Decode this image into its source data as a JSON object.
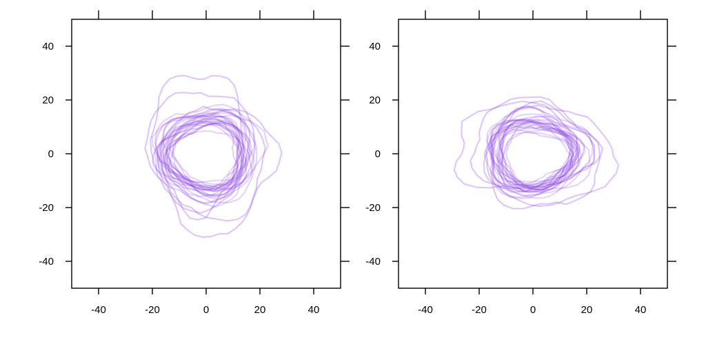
{
  "chart_data": [
    {
      "type": "line",
      "panel": "left",
      "xlim": [
        -50,
        50
      ],
      "ylim": [
        -50,
        50
      ],
      "x_ticks": [
        -40,
        -20,
        0,
        20,
        40
      ],
      "y_ticks": [
        -40,
        -20,
        0,
        20,
        40
      ],
      "tick_labels_x": [
        "-40",
        "-20",
        "0",
        "20",
        "40"
      ],
      "tick_labels_y": [
        "40",
        "20",
        "0",
        "-20",
        "-40"
      ],
      "grid": false,
      "line_color": "#8a3ee0",
      "description": "Overlay of many closed ring-shaped traces centered near (0, 0)",
      "series": [
        {
          "cx": 0,
          "cy": -1,
          "rx": 14,
          "ry": 12
        },
        {
          "cx": 1,
          "cy": 0,
          "rx": 15,
          "ry": 13
        },
        {
          "cx": -1,
          "cy": -1,
          "rx": 13,
          "ry": 12
        },
        {
          "cx": 0,
          "cy": 0,
          "rx": 16,
          "ry": 14
        },
        {
          "cx": 1,
          "cy": -2,
          "rx": 14,
          "ry": 13
        },
        {
          "cx": -1,
          "cy": 1,
          "rx": 15,
          "ry": 12
        },
        {
          "cx": 0,
          "cy": -1,
          "rx": 12,
          "ry": 11
        },
        {
          "cx": 1,
          "cy": 0,
          "rx": 17,
          "ry": 15
        },
        {
          "cx": 0,
          "cy": 1,
          "rx": 13,
          "ry": 13
        },
        {
          "cx": -1,
          "cy": -2,
          "rx": 16,
          "ry": 13
        },
        {
          "cx": 0,
          "cy": 0,
          "rx": 14,
          "ry": 14
        },
        {
          "cx": 2,
          "cy": -1,
          "rx": 15,
          "ry": 12
        },
        {
          "cx": -2,
          "cy": 0,
          "rx": 14,
          "ry": 13
        },
        {
          "cx": 0,
          "cy": -1,
          "rx": 18,
          "ry": 16
        },
        {
          "cx": 1,
          "cy": 1,
          "rx": 13,
          "ry": 12
        },
        {
          "cx": 0,
          "cy": 0,
          "rx": 19,
          "ry": 18
        },
        {
          "cx": -1,
          "cy": -2,
          "rx": 16,
          "ry": 15
        },
        {
          "cx": 1,
          "cy": -1,
          "rx": 12,
          "ry": 12
        },
        {
          "cx": 0,
          "cy": 2,
          "rx": 17,
          "ry": 14
        },
        {
          "cx": 0,
          "cy": -1,
          "rx": 15,
          "ry": 14
        },
        {
          "cx": 2,
          "cy": 0,
          "rx": 20,
          "ry": 17
        },
        {
          "cx": -1,
          "cy": 0,
          "rx": 14,
          "ry": 12
        },
        {
          "cx": 0,
          "cy": -2,
          "rx": 13,
          "ry": 11
        },
        {
          "cx": 1,
          "cy": 1,
          "rx": 16,
          "ry": 16
        },
        {
          "cx": -3,
          "cy": 5,
          "rx": 17,
          "ry": 26
        },
        {
          "cx": 2,
          "cy": -6,
          "rx": 19,
          "ry": 24
        },
        {
          "cx": 4,
          "cy": -3,
          "rx": 22,
          "ry": 20
        },
        {
          "cx": -2,
          "cy": 2,
          "rx": 20,
          "ry": 22
        }
      ]
    },
    {
      "type": "line",
      "panel": "right",
      "xlim": [
        -50,
        50
      ],
      "ylim": [
        -50,
        50
      ],
      "x_ticks": [
        -40,
        -20,
        0,
        20,
        40
      ],
      "y_ticks": [
        -40,
        -20,
        0,
        20,
        40
      ],
      "tick_labels_x": [
        "-40",
        "-20",
        "0",
        "20",
        "40"
      ],
      "tick_labels_y": [
        "40",
        "20",
        "0",
        "-20",
        "-40"
      ],
      "grid": false,
      "line_color": "#8a3ee0",
      "description": "Overlay of many closed ring-shaped traces centered near (0, 0)",
      "series": [
        {
          "cx": 1,
          "cy": -1,
          "rx": 14,
          "ry": 12
        },
        {
          "cx": 0,
          "cy": 0,
          "rx": 15,
          "ry": 12
        },
        {
          "cx": 1,
          "cy": -1,
          "rx": 13,
          "ry": 11
        },
        {
          "cx": 0,
          "cy": 0,
          "rx": 16,
          "ry": 13
        },
        {
          "cx": 2,
          "cy": -1,
          "rx": 14,
          "ry": 12
        },
        {
          "cx": -1,
          "cy": 0,
          "rx": 15,
          "ry": 11
        },
        {
          "cx": 1,
          "cy": -2,
          "rx": 12,
          "ry": 10
        },
        {
          "cx": 0,
          "cy": 0,
          "rx": 17,
          "ry": 14
        },
        {
          "cx": 1,
          "cy": 1,
          "rx": 13,
          "ry": 12
        },
        {
          "cx": 0,
          "cy": -1,
          "rx": 16,
          "ry": 12
        },
        {
          "cx": 1,
          "cy": 0,
          "rx": 14,
          "ry": 13
        },
        {
          "cx": 2,
          "cy": -1,
          "rx": 15,
          "ry": 11
        },
        {
          "cx": -1,
          "cy": 0,
          "rx": 14,
          "ry": 12
        },
        {
          "cx": 1,
          "cy": -1,
          "rx": 18,
          "ry": 15
        },
        {
          "cx": 0,
          "cy": 1,
          "rx": 13,
          "ry": 11
        },
        {
          "cx": 1,
          "cy": 0,
          "rx": 19,
          "ry": 16
        },
        {
          "cx": 0,
          "cy": -1,
          "rx": 16,
          "ry": 14
        },
        {
          "cx": 2,
          "cy": 0,
          "rx": 12,
          "ry": 11
        },
        {
          "cx": 0,
          "cy": 1,
          "rx": 17,
          "ry": 13
        },
        {
          "cx": 1,
          "cy": -1,
          "rx": 15,
          "ry": 13
        },
        {
          "cx": 2,
          "cy": 0,
          "rx": 20,
          "ry": 16
        },
        {
          "cx": 0,
          "cy": 0,
          "rx": 14,
          "ry": 11
        },
        {
          "cx": 1,
          "cy": -2,
          "rx": 13,
          "ry": 10
        },
        {
          "cx": 0,
          "cy": 1,
          "rx": 16,
          "ry": 15
        },
        {
          "cx": -4,
          "cy": 2,
          "rx": 26,
          "ry": 16
        },
        {
          "cx": 6,
          "cy": -1,
          "rx": 24,
          "ry": 18
        },
        {
          "cx": 3,
          "cy": -2,
          "rx": 21,
          "ry": 19
        },
        {
          "cx": -1,
          "cy": 3,
          "rx": 22,
          "ry": 17
        }
      ]
    }
  ]
}
